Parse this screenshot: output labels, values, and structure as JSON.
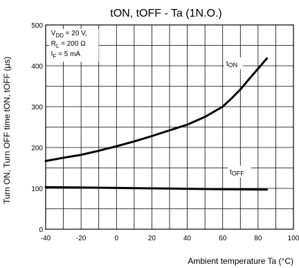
{
  "chart_data": {
    "type": "line",
    "title": "tON, tOFF - Ta (1N.O.)",
    "xlabel": "Ambient temperature Ta (°C)",
    "ylabel": "Turn ON, Turn OFF time tON, tOFF (μs)",
    "xlim": [
      -40,
      100
    ],
    "ylim": [
      0,
      500
    ],
    "xticks": [
      -40,
      -20,
      0,
      20,
      40,
      60,
      80,
      100
    ],
    "yticks": [
      0,
      100,
      200,
      300,
      400,
      500
    ],
    "grid": true,
    "conditions": [
      "VDD = 20 V,",
      "RL = 200 Ω",
      "IF = 5 mA"
    ],
    "series": [
      {
        "name": "tON",
        "x": [
          -40,
          -30,
          -20,
          -10,
          0,
          10,
          20,
          30,
          40,
          50,
          60,
          65,
          70,
          75,
          80,
          85
        ],
        "y": [
          167,
          175,
          182,
          192,
          203,
          215,
          228,
          242,
          256,
          275,
          300,
          320,
          342,
          368,
          393,
          418
        ]
      },
      {
        "name": "tOFF",
        "x": [
          -40,
          -20,
          0,
          20,
          40,
          60,
          85
        ],
        "y": [
          103,
          102,
          101,
          100,
          99,
          98,
          97
        ]
      }
    ]
  }
}
